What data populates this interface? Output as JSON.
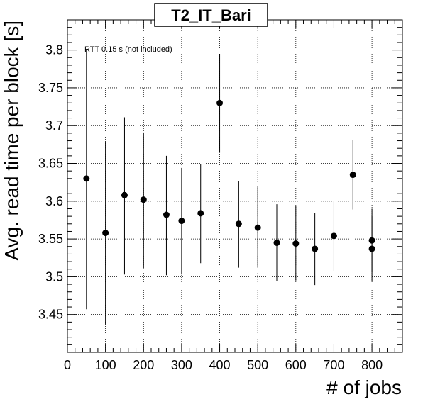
{
  "chart_data": {
    "type": "scatter",
    "title": "T2_IT_Bari",
    "xlabel": "# of jobs",
    "ylabel": "Avg. read time per block [s]",
    "annotation": "RTT 0.15 s (not included)",
    "xlim": [
      0,
      880
    ],
    "ylim": [
      3.4,
      3.84
    ],
    "grid": true,
    "x_tick_labels": [
      "0",
      "100",
      "200",
      "300",
      "400",
      "500",
      "600",
      "700",
      "800"
    ],
    "y_tick_labels": [
      "3.45",
      "3.5",
      "3.55",
      "3.6",
      "3.65",
      "3.7",
      "3.75",
      "3.8"
    ],
    "points": [
      {
        "x": 50,
        "y": 3.63,
        "err_low": 3.457,
        "err_high": 3.8
      },
      {
        "x": 100,
        "y": 3.558,
        "err_low": 3.437,
        "err_high": 3.679
      },
      {
        "x": 150,
        "y": 3.608,
        "err_low": 3.503,
        "err_high": 3.711
      },
      {
        "x": 200,
        "y": 3.602,
        "err_low": 3.511,
        "err_high": 3.691
      },
      {
        "x": 260,
        "y": 3.582,
        "err_low": 3.502,
        "err_high": 3.66
      },
      {
        "x": 300,
        "y": 3.574,
        "err_low": 3.503,
        "err_high": 3.644
      },
      {
        "x": 350,
        "y": 3.584,
        "err_low": 3.518,
        "err_high": 3.649
      },
      {
        "x": 400,
        "y": 3.73,
        "err_low": 3.664,
        "err_high": 3.795
      },
      {
        "x": 450,
        "y": 3.57,
        "err_low": 3.512,
        "err_high": 3.627
      },
      {
        "x": 500,
        "y": 3.565,
        "err_low": 3.512,
        "err_high": 3.62
      },
      {
        "x": 550,
        "y": 3.545,
        "err_low": 3.494,
        "err_high": 3.596
      },
      {
        "x": 600,
        "y": 3.544,
        "err_low": 3.495,
        "err_high": 3.594
      },
      {
        "x": 650,
        "y": 3.537,
        "err_low": 3.489,
        "err_high": 3.584
      },
      {
        "x": 700,
        "y": 3.554,
        "err_low": 3.508,
        "err_high": 3.6
      },
      {
        "x": 750,
        "y": 3.635,
        "err_low": 3.589,
        "err_high": 3.681
      },
      {
        "x": 800,
        "y": 3.548,
        "err_low": 3.506,
        "err_high": 3.59
      },
      {
        "x": 800,
        "y": 3.537,
        "err_low": 3.494,
        "err_high": 3.58
      }
    ]
  }
}
